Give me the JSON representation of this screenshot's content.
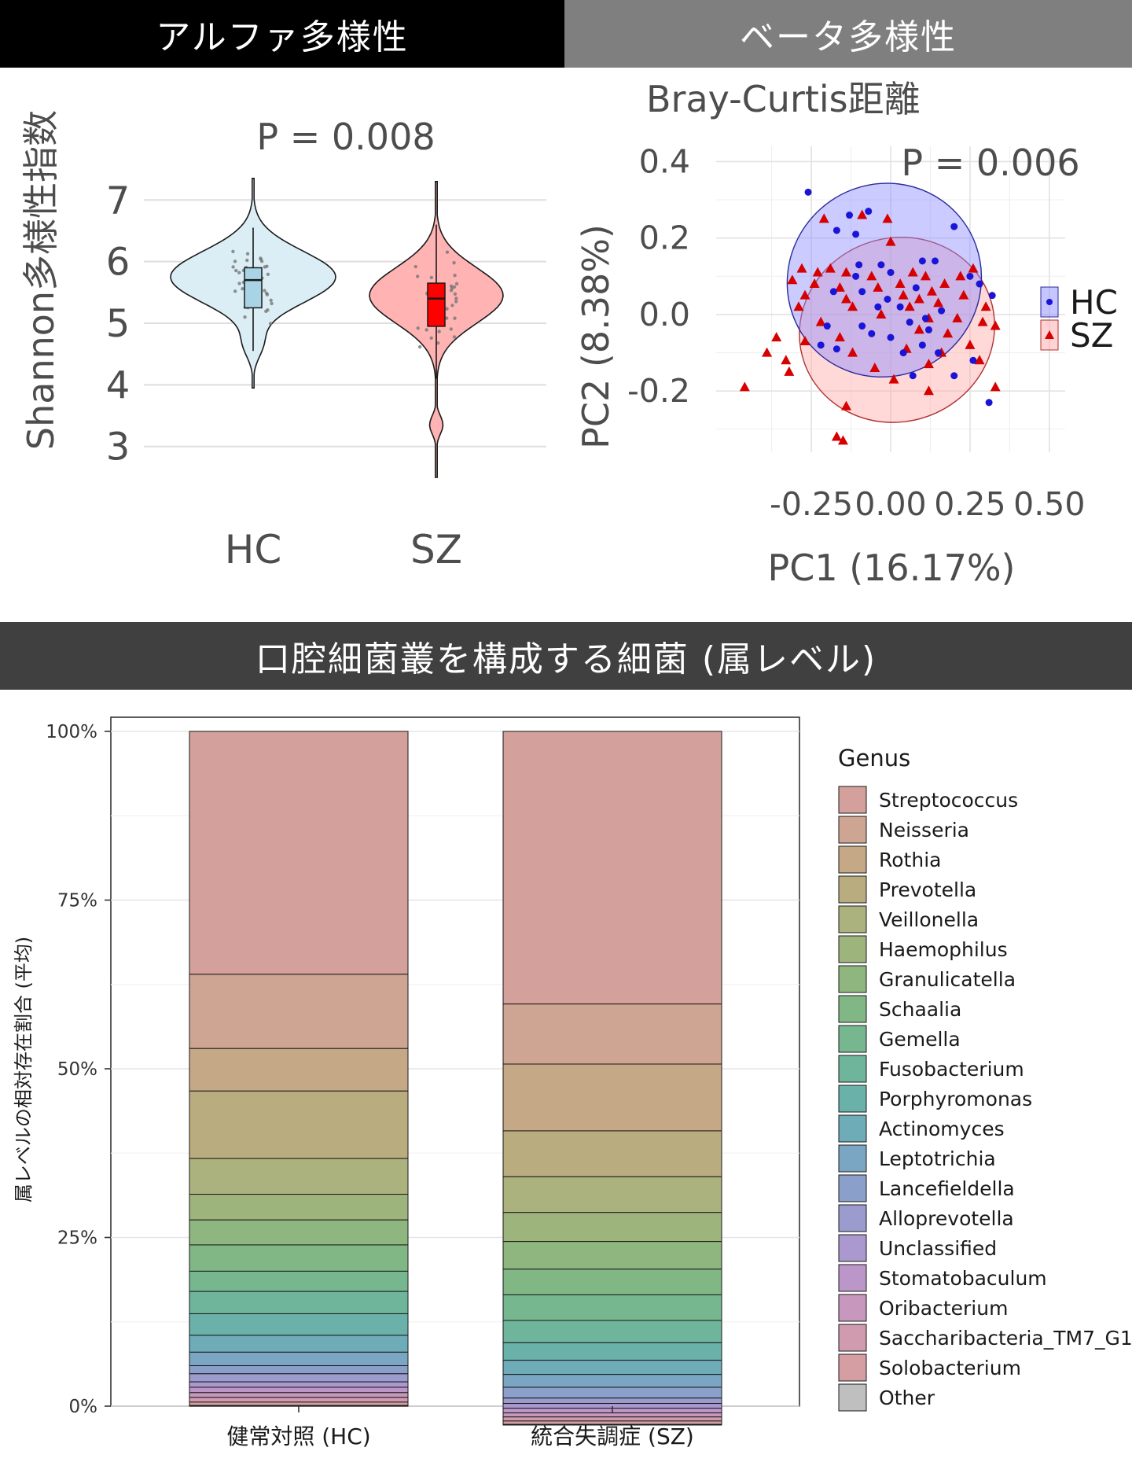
{
  "headers": {
    "alpha": "アルファ多様性",
    "beta": "ベータ多様性",
    "genus": "口腔細菌叢を構成する細菌 (属レベル)"
  },
  "colors": {
    "hc_fill": "#dceef5",
    "sz_fill": "#ffb3b3",
    "hc_box": "#a8d4e6",
    "sz_box": "#ff0000",
    "hc_point": "#1a14d6",
    "sz_point": "#d60000",
    "hc_ellipse": "#8c8cff",
    "sz_ellipse": "#ffa8a8"
  },
  "chart_data": [
    {
      "type": "violin",
      "title": "P = 0.008",
      "xlabel": "",
      "ylabel": "Shannon多様性指数",
      "categories": [
        "HC",
        "SZ"
      ],
      "yticks": [
        "3",
        "4",
        "5",
        "6",
        "7"
      ],
      "ylim": [
        2.55,
        7.45
      ],
      "series": [
        {
          "name": "HC",
          "min": 3.95,
          "max": 7.35,
          "q1": 5.25,
          "median": 5.7,
          "q3": 5.9,
          "whisker_low": 4.55,
          "whisker_high": 6.55,
          "mode": 5.75
        },
        {
          "name": "SZ",
          "min": 2.5,
          "max": 7.3,
          "q1": 4.95,
          "median": 5.4,
          "q3": 5.65,
          "whisker_low": 4.1,
          "whisker_high": 6.6,
          "mode": 5.45
        }
      ]
    },
    {
      "type": "scatter",
      "title": "Bray-Curtis距離",
      "annotation": "P = 0.006",
      "xlabel": "PC1 (16.17%)",
      "ylabel": "PC2 (8.38%)",
      "xticks": [
        "-0.25",
        "0.00",
        "0.25",
        "0.50"
      ],
      "yticks": [
        "0.4",
        "0.2",
        "0.0",
        "-0.2"
      ],
      "xlim": [
        -0.55,
        0.55
      ],
      "ylim": [
        -0.36,
        0.44
      ],
      "legend": [
        {
          "label": "HC",
          "shape": "circle"
        },
        {
          "label": "SZ",
          "shape": "triangle"
        }
      ],
      "series": [
        {
          "name": "HC",
          "ellipse": {
            "cx": -0.02,
            "cy": 0.09,
            "rx": 0.31,
            "ry": 0.25,
            "angle": -42
          },
          "points": [
            [
              -0.26,
              0.32
            ],
            [
              -0.13,
              0.26
            ],
            [
              -0.07,
              0.27
            ],
            [
              -0.17,
              0.22
            ],
            [
              -0.11,
              0.21
            ],
            [
              0.2,
              0.23
            ],
            [
              -0.1,
              0.13
            ],
            [
              -0.11,
              0.1
            ],
            [
              -0.03,
              0.13
            ],
            [
              0.0,
              0.11
            ],
            [
              0.1,
              0.14
            ],
            [
              0.14,
              0.14
            ],
            [
              0.25,
              0.1
            ],
            [
              0.28,
              0.08
            ],
            [
              0.32,
              0.05
            ],
            [
              -0.18,
              0.06
            ],
            [
              -0.09,
              0.06
            ],
            [
              -0.01,
              0.04
            ],
            [
              0.08,
              0.07
            ],
            [
              -0.04,
              0.02
            ],
            [
              0.03,
              0.02
            ],
            [
              0.11,
              -0.01
            ],
            [
              0.16,
              0.01
            ],
            [
              -0.2,
              -0.03
            ],
            [
              -0.09,
              -0.03
            ],
            [
              -0.06,
              -0.05
            ],
            [
              0.06,
              -0.02
            ],
            [
              0.12,
              -0.04
            ],
            [
              -0.22,
              -0.08
            ],
            [
              -0.17,
              -0.09
            ],
            [
              0.0,
              -0.06
            ],
            [
              0.04,
              -0.1
            ],
            [
              0.1,
              -0.08
            ],
            [
              0.15,
              -0.1
            ],
            [
              0.26,
              -0.12
            ],
            [
              0.07,
              -0.16
            ],
            [
              0.2,
              -0.16
            ],
            [
              0.31,
              -0.23
            ]
          ]
        },
        {
          "name": "SZ",
          "ellipse": {
            "cx": 0.02,
            "cy": -0.04,
            "rx": 0.31,
            "ry": 0.24,
            "angle": -20
          },
          "points": [
            [
              -0.21,
              0.25
            ],
            [
              -0.09,
              0.26
            ],
            [
              -0.01,
              0.25
            ],
            [
              0.0,
              0.19
            ],
            [
              -0.28,
              0.12
            ],
            [
              -0.23,
              0.11
            ],
            [
              -0.19,
              0.12
            ],
            [
              -0.14,
              0.11
            ],
            [
              -0.06,
              0.1
            ],
            [
              0.07,
              0.11
            ],
            [
              0.11,
              0.1
            ],
            [
              0.22,
              0.1
            ],
            [
              0.26,
              0.12
            ],
            [
              -0.31,
              0.09
            ],
            [
              -0.24,
              0.08
            ],
            [
              -0.16,
              0.07
            ],
            [
              -0.04,
              0.07
            ],
            [
              0.03,
              0.08
            ],
            [
              0.17,
              0.08
            ],
            [
              -0.27,
              0.05
            ],
            [
              -0.14,
              0.04
            ],
            [
              0.04,
              0.05
            ],
            [
              0.09,
              0.04
            ],
            [
              0.13,
              0.06
            ],
            [
              0.23,
              0.05
            ],
            [
              -0.29,
              0.02
            ],
            [
              -0.12,
              0.02
            ],
            [
              0.06,
              0.02
            ],
            [
              0.15,
              0.03
            ],
            [
              0.3,
              0.02
            ],
            [
              -0.22,
              -0.02
            ],
            [
              -0.03,
              0.0
            ],
            [
              0.12,
              -0.01
            ],
            [
              0.21,
              -0.01
            ],
            [
              0.29,
              -0.02
            ],
            [
              0.33,
              -0.03
            ],
            [
              -0.36,
              -0.06
            ],
            [
              -0.27,
              -0.07
            ],
            [
              -0.16,
              -0.06
            ],
            [
              0.09,
              -0.04
            ],
            [
              0.18,
              -0.05
            ],
            [
              -0.39,
              -0.1
            ],
            [
              -0.33,
              -0.12
            ],
            [
              -0.12,
              -0.1
            ],
            [
              0.05,
              -0.09
            ],
            [
              0.16,
              -0.1
            ],
            [
              0.25,
              -0.08
            ],
            [
              -0.32,
              -0.15
            ],
            [
              -0.05,
              -0.14
            ],
            [
              0.12,
              -0.13
            ],
            [
              0.28,
              -0.12
            ],
            [
              0.33,
              -0.19
            ],
            [
              -0.46,
              -0.19
            ],
            [
              -0.14,
              -0.24
            ],
            [
              0.01,
              -0.17
            ],
            [
              0.12,
              -0.2
            ],
            [
              -0.17,
              -0.32
            ],
            [
              -0.15,
              -0.33
            ]
          ]
        }
      ]
    },
    {
      "type": "bar",
      "stacked": true,
      "title": "",
      "xlabel": "",
      "ylabel": "属レベルの相対存在割合 (平均)",
      "categories": [
        "健常対照 (HC)",
        "統合失調症 (SZ)"
      ],
      "yticks": [
        "0%",
        "25%",
        "50%",
        "75%",
        "100%"
      ],
      "ylim": [
        0,
        100
      ],
      "legend_title": "Genus",
      "series": [
        {
          "name": "Streptococcus",
          "color": "#d4a09b",
          "values": [
            36.0,
            40.4
          ]
        },
        {
          "name": "Neisseria",
          "color": "#cea592",
          "values": [
            11.0,
            8.9
          ]
        },
        {
          "name": "Rothia",
          "color": "#c5a986",
          "values": [
            6.3,
            9.9
          ]
        },
        {
          "name": "Prevotella",
          "color": "#b9ad7f",
          "values": [
            10.0,
            6.8
          ]
        },
        {
          "name": "Veillonella",
          "color": "#acb27e",
          "values": [
            5.3,
            5.3
          ]
        },
        {
          "name": "Haemophilus",
          "color": "#9eb47d",
          "values": [
            3.8,
            4.3
          ]
        },
        {
          "name": "Granulicatella",
          "color": "#8fb67f",
          "values": [
            3.7,
            4.1
          ]
        },
        {
          "name": "Schaalia",
          "color": "#80b785",
          "values": [
            3.9,
            3.8
          ]
        },
        {
          "name": "Gemella",
          "color": "#76b790",
          "values": [
            3.0,
            3.8
          ]
        },
        {
          "name": "Fusobacterium",
          "color": "#6eb59c",
          "values": [
            3.3,
            3.3
          ]
        },
        {
          "name": "Porphyromonas",
          "color": "#6ab1aa",
          "values": [
            3.2,
            2.6
          ]
        },
        {
          "name": "Actinomyces",
          "color": "#6eacb8",
          "values": [
            2.5,
            2.1
          ]
        },
        {
          "name": "Leptotrichia",
          "color": "#7aa6c3",
          "values": [
            2.0,
            1.9
          ]
        },
        {
          "name": "Lancefieldella",
          "color": "#8aa0cb",
          "values": [
            1.2,
            1.6
          ]
        },
        {
          "name": "Alloprevotella",
          "color": "#9b9bce",
          "values": [
            1.2,
            0.8
          ]
        },
        {
          "name": "Unclassified",
          "color": "#ab98ce",
          "values": [
            0.8,
            0.7
          ]
        },
        {
          "name": "Stomatobaculum",
          "color": "#bb96c8",
          "values": [
            0.8,
            0.7
          ]
        },
        {
          "name": "Oribacterium",
          "color": "#c897bd",
          "values": [
            0.7,
            0.6
          ]
        },
        {
          "name": "Saccharibacteria_TM7_G1",
          "color": "#d09aaf",
          "values": [
            0.7,
            0.6
          ]
        },
        {
          "name": "Solobacterium",
          "color": "#d59ea2",
          "values": [
            0.5,
            0.5
          ]
        },
        {
          "name": "Other",
          "color": "#bfbfbf",
          "values": [
            0.1,
            0.1
          ]
        }
      ]
    }
  ]
}
